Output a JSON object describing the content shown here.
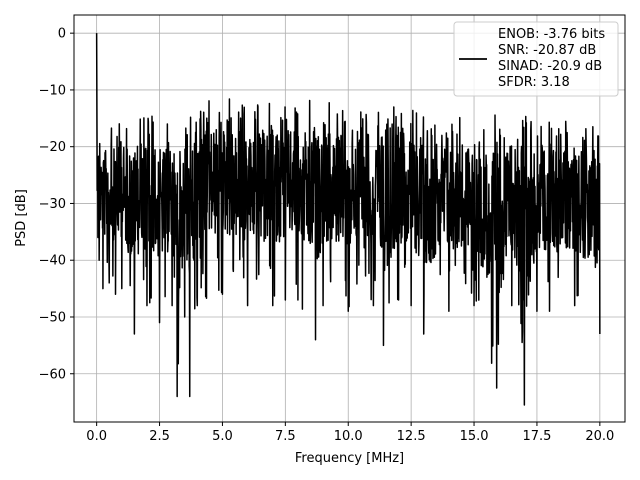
{
  "chart_data": {
    "type": "line",
    "xlabel": "Frequency [MHz]",
    "ylabel": "PSD [dB]",
    "xlim": [
      -0.9,
      21.0
    ],
    "ylim": [
      -68.5,
      3.2
    ],
    "grid": true,
    "x_ticks": [
      0.0,
      2.5,
      5.0,
      7.5,
      10.0,
      12.5,
      15.0,
      17.5,
      20.0
    ],
    "x_tick_labels": [
      "0.0",
      "2.5",
      "5.0",
      "7.5",
      "10.0",
      "12.5",
      "15.0",
      "17.5",
      "20.0"
    ],
    "y_ticks": [
      0,
      -10,
      -20,
      -30,
      -40,
      -50,
      -60
    ],
    "y_tick_labels": [
      "0",
      "−10",
      "−20",
      "−30",
      "−40",
      "−50",
      "−60"
    ],
    "legend": {
      "placement": "top-right",
      "lines": [
        "ENOB: -3.76 bits",
        "SNR: -20.87 dB",
        "SINAD: -20.9 dB",
        "SFDR: 3.18"
      ]
    },
    "series": [
      {
        "color": "#000000",
        "x": [
          0.0,
          0.05,
          0.1,
          0.25,
          0.5,
          0.75,
          1.0,
          1.5,
          2.0,
          2.5,
          3.0,
          3.2,
          3.5,
          3.7,
          4.0,
          5.0,
          6.0,
          7.0,
          7.5,
          8.0,
          8.7,
          9.0,
          10.0,
          11.0,
          11.4,
          12.0,
          12.5,
          13.0,
          14.0,
          15.0,
          15.9,
          16.5,
          17.0,
          17.5,
          18.0,
          19.0,
          20.0
        ],
        "y_upper": [
          0.0,
          -13.5,
          -18.0,
          -17.0,
          -15.5,
          -16.0,
          -15.0,
          -14.5,
          -14.0,
          -15.0,
          -15.5,
          -14.0,
          -13.5,
          -14.0,
          -12.5,
          -11.0,
          -12.5,
          -12.0,
          -12.0,
          -11.5,
          -12.0,
          -12.0,
          -13.0,
          -13.5,
          -13.0,
          -13.0,
          -13.5,
          -14.0,
          -14.0,
          -14.5,
          -14.0,
          -14.5,
          -14.5,
          -15.0,
          -15.0,
          -15.5,
          -16.5
        ],
        "y_lower": [
          -38.0,
          -36.0,
          -40.0,
          -45.0,
          -44.0,
          -46.0,
          -45.0,
          -53.0,
          -48.0,
          -51.0,
          -48.0,
          -64.0,
          -50.0,
          -64.0,
          -48.0,
          -46.0,
          -48.0,
          -48.0,
          -47.0,
          -47.0,
          -54.0,
          -48.0,
          -49.0,
          -48.0,
          -55.0,
          -47.0,
          -48.0,
          -53.0,
          -49.0,
          -48.0,
          -62.5,
          -48.0,
          -65.5,
          -49.0,
          -49.0,
          -48.0,
          -53.0
        ]
      }
    ]
  }
}
